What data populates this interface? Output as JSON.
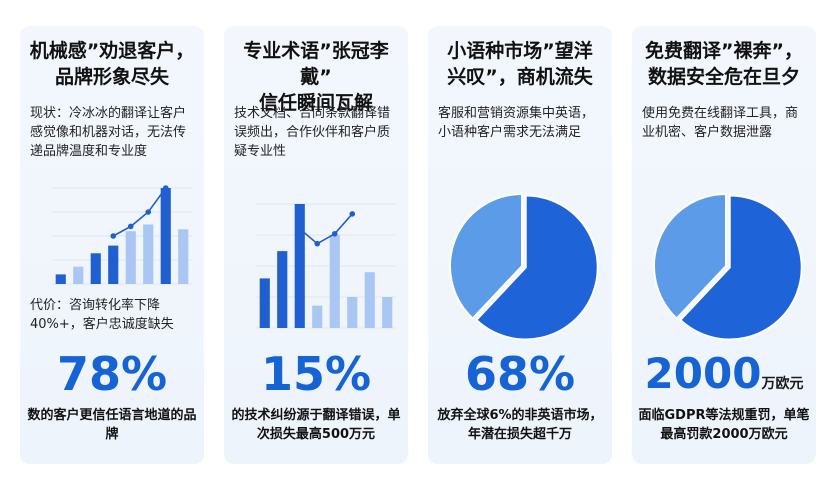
{
  "cards": [
    {
      "title_line1": "机械感”劝退客户，",
      "title_line2": "品牌形象尽失",
      "desc": "现状：冷冰冰的翻译让客户感觉像和机器对话，无法传递品牌温度和专业度",
      "cost": "代价：咨询转化率下降40%+，客户忠诚度缺失",
      "stat": "78%",
      "foot": "数的客户更信任语言地道的品牌"
    },
    {
      "title_line1": "专业术语”张冠李戴”",
      "title_line2": "信任瞬间瓦解",
      "desc": "技术文档、合同条款翻译错误频出，合作伙伴和客户质疑专业性",
      "stat": "15%",
      "foot": "的技术纠纷源于翻译错误，单次损失最高500万元"
    },
    {
      "title_line1": "小语种市场”望洋",
      "title_line2": "兴叹”，商机流失",
      "desc": "客服和营销资源集中英语，小语种客户需求无法满足",
      "stat": "68%",
      "foot": "放弃全球6%的非英语市场，年潜在损失超千万"
    },
    {
      "title_line1": "免费翻译”裸奔”，",
      "title_line2": "数据安全危在旦夕",
      "desc": "使用免费在线翻译工具，商业机密、客户数据泄露",
      "stat": "2000",
      "stat_unit": "万欧元",
      "foot": "面临GDPR等法规重罚，单笔最高罚款2000万欧元"
    }
  ],
  "chart_data": [
    {
      "type": "bar",
      "values": [
        10,
        18,
        32,
        40,
        55,
        62,
        100,
        57
      ],
      "line": [
        null,
        null,
        null,
        50,
        60,
        75,
        100,
        null
      ],
      "ylim": [
        0,
        100
      ],
      "colors": {
        "dark": "#1f5fd0",
        "light": "#a9c7f2",
        "line": "#1f5fd0"
      }
    },
    {
      "type": "bar",
      "values": [
        40,
        62,
        100,
        18,
        75,
        25,
        45,
        25
      ],
      "line": [
        null,
        null,
        80,
        68,
        76,
        92,
        null,
        null
      ],
      "ylim": [
        0,
        100
      ],
      "colors": {
        "dark": "#1f5fd0",
        "light": "#a9c7f2",
        "line": "#1f5fd0"
      }
    },
    {
      "type": "pie",
      "values": [
        62,
        38
      ],
      "colors": {
        "dark": "#1f63d8",
        "light": "#5b9be8"
      }
    },
    {
      "type": "pie",
      "values": [
        62,
        38
      ],
      "colors": {
        "dark": "#1f63d8",
        "light": "#5b9be8"
      }
    }
  ]
}
